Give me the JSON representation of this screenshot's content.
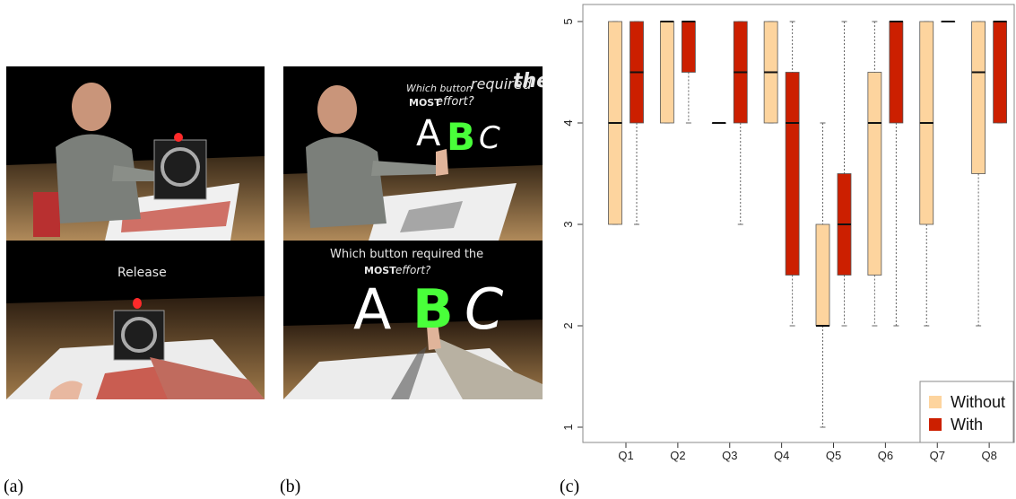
{
  "panels": {
    "a": {
      "caption": "(a)",
      "bottom_text": "Release"
    },
    "b": {
      "caption": "(b)",
      "top_question": [
        "Which button",
        "required",
        "the",
        "MOST",
        "effort?"
      ],
      "bottom_question": [
        "Which button required the",
        "MOST",
        "effort?"
      ],
      "letters": [
        "A",
        "B",
        "C"
      ],
      "highlight_color": "#49ff3a"
    }
  },
  "chart": {
    "caption": "(c)",
    "colors": {
      "without": "#fdd49e",
      "with": "#cc1f00"
    }
  },
  "chart_data": {
    "type": "boxplot",
    "title": "",
    "xlabel": "",
    "ylabel": "",
    "ylim": [
      1,
      5
    ],
    "yticks": [
      1,
      2,
      3,
      4,
      5
    ],
    "grid": false,
    "legend_position": "bottom-right",
    "categories": [
      "Q1",
      "Q2",
      "Q3",
      "Q4",
      "Q5",
      "Q6",
      "Q7",
      "Q8"
    ],
    "series": [
      {
        "name": "Without",
        "boxes": [
          {
            "whisker_low": 3,
            "q1": 3,
            "median": 4,
            "q3": 5,
            "whisker_high": 5
          },
          {
            "whisker_low": 4,
            "q1": 4,
            "median": 5,
            "q3": 5,
            "whisker_high": 5
          },
          {
            "whisker_low": 4,
            "q1": 4,
            "median": 4,
            "q3": 4,
            "whisker_high": 4
          },
          {
            "whisker_low": 4,
            "q1": 4,
            "median": 4.5,
            "q3": 5,
            "whisker_high": 5
          },
          {
            "whisker_low": 1,
            "q1": 2,
            "median": 2,
            "q3": 3,
            "whisker_high": 4
          },
          {
            "whisker_low": 2,
            "q1": 2.5,
            "median": 4,
            "q3": 4.5,
            "whisker_high": 5
          },
          {
            "whisker_low": 2,
            "q1": 3,
            "median": 4,
            "q3": 5,
            "whisker_high": 5
          },
          {
            "whisker_low": 2,
            "q1": 3.5,
            "median": 4.5,
            "q3": 5,
            "whisker_high": 5
          }
        ]
      },
      {
        "name": "With",
        "boxes": [
          {
            "whisker_low": 3,
            "q1": 4,
            "median": 4.5,
            "q3": 5,
            "whisker_high": 5
          },
          {
            "whisker_low": 4,
            "q1": 4.5,
            "median": 5,
            "q3": 5,
            "whisker_high": 5
          },
          {
            "whisker_low": 3,
            "q1": 4,
            "median": 4.5,
            "q3": 5,
            "whisker_high": 5
          },
          {
            "whisker_low": 2,
            "q1": 2.5,
            "median": 4,
            "q3": 4.5,
            "whisker_high": 5
          },
          {
            "whisker_low": 2,
            "q1": 2.5,
            "median": 3,
            "q3": 3.5,
            "whisker_high": 5
          },
          {
            "whisker_low": 2,
            "q1": 4,
            "median": 5,
            "q3": 5,
            "whisker_high": 5
          },
          {
            "whisker_low": 5,
            "q1": 5,
            "median": 5,
            "q3": 5,
            "whisker_high": 5
          },
          {
            "whisker_low": 4,
            "q1": 4,
            "median": 5,
            "q3": 5,
            "whisker_high": 5
          }
        ]
      }
    ]
  }
}
